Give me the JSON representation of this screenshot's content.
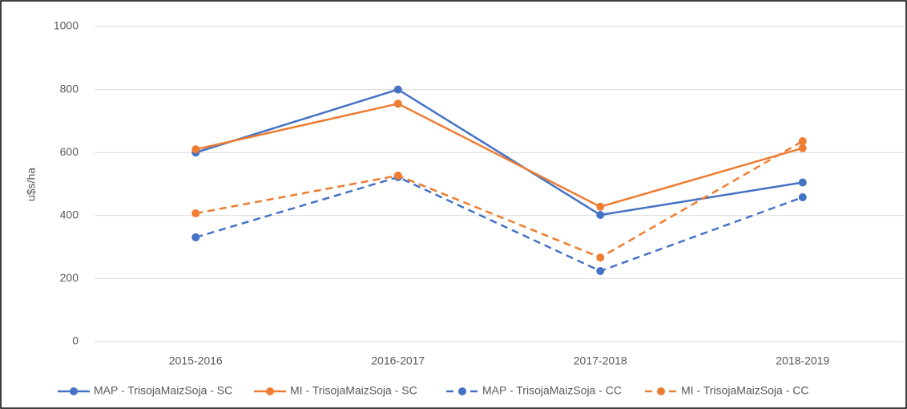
{
  "chart_data": {
    "type": "line",
    "y_label": "u$s/ha",
    "categories": [
      "2015-2016",
      "2016-2017",
      "2017-2018",
      "2018-2019"
    ],
    "series": [
      {
        "name": "MAP - TrisojaMaizSoja - SC",
        "color": "#4472c4",
        "dashed": false,
        "values": [
          600,
          800,
          402,
          505
        ]
      },
      {
        "name": "MI - TrisojaMaizSoja - SC",
        "color": "#ed7d31",
        "dashed": false,
        "values": [
          610,
          755,
          428,
          614
        ]
      },
      {
        "name": "MAP - TrisojaMaizSoja - CC",
        "color": "#4472c4",
        "dashed": true,
        "values": [
          331,
          522,
          224,
          458
        ]
      },
      {
        "name": "MI - TrisojaMaizSoja - CC",
        "color": "#ed7d31",
        "dashed": true,
        "values": [
          407,
          527,
          267,
          636
        ]
      }
    ],
    "ylim": [
      0,
      1000
    ],
    "yticks": [
      0,
      200,
      400,
      600,
      800,
      1000
    ],
    "grid": true,
    "legend": "bottom"
  }
}
